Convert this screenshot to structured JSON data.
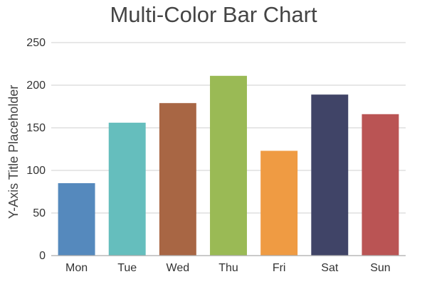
{
  "chart_data": {
    "type": "bar",
    "title": "Multi-Color Bar Chart",
    "xlabel": "",
    "ylabel": "Y-Axis Title Placeholder",
    "categories": [
      "Mon",
      "Tue",
      "Wed",
      "Thu",
      "Fri",
      "Sat",
      "Sun"
    ],
    "values": [
      85,
      156,
      179,
      211,
      123,
      189,
      166
    ],
    "colors": [
      "#5589bd",
      "#65bebd",
      "#a86644",
      "#9aba55",
      "#ef9b43",
      "#404467",
      "#ba5454"
    ],
    "ylim": [
      0,
      250
    ],
    "yticks": [
      0,
      50,
      100,
      150,
      200,
      250
    ],
    "grid": true,
    "legend": "none"
  }
}
